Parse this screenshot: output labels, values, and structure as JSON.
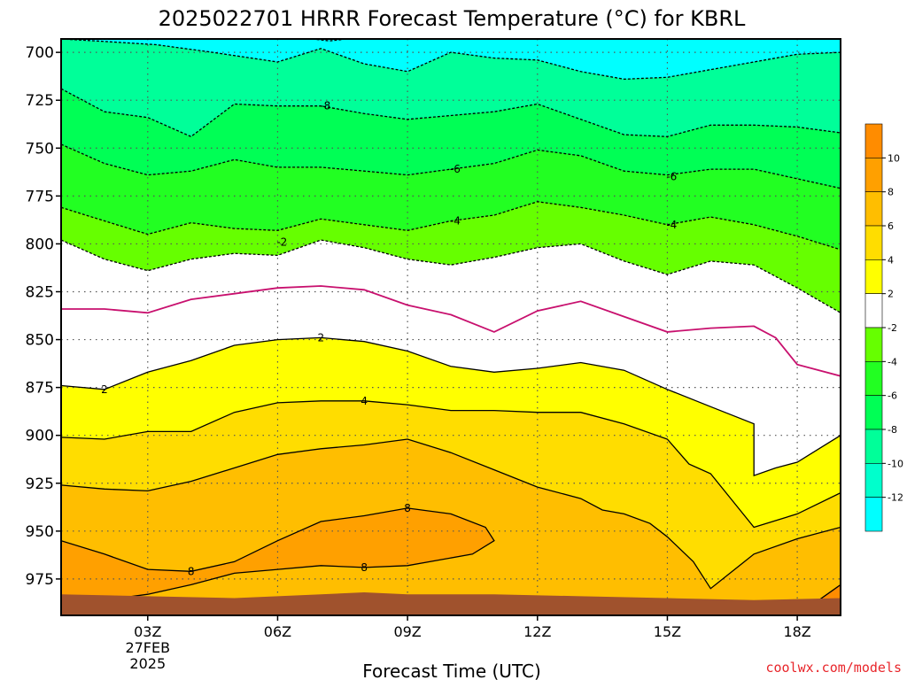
{
  "chart_data": {
    "type": "contour",
    "title": "2025022701 HRRR Forecast Temperature (°C) for KBRL",
    "xlabel": "Forecast Time (UTC)",
    "ylabel": "",
    "credit": "coolwx.com/models",
    "x_ticks": [
      {
        "hour": 3,
        "label": "03Z",
        "sub": [
          "27FEB",
          "2025"
        ]
      },
      {
        "hour": 6,
        "label": "06Z",
        "sub": []
      },
      {
        "hour": 9,
        "label": "09Z",
        "sub": []
      },
      {
        "hour": 12,
        "label": "12Z",
        "sub": []
      },
      {
        "hour": 15,
        "label": "15Z",
        "sub": []
      },
      {
        "hour": 18,
        "label": "18Z",
        "sub": []
      }
    ],
    "xlim": [
      1,
      19
    ],
    "y_axis": "pressure (hPa), decreasing upward",
    "ylim": [
      994,
      693
    ],
    "y_ticks": [
      700,
      725,
      750,
      775,
      800,
      825,
      850,
      875,
      900,
      925,
      950,
      975
    ],
    "grid": "dotted",
    "colorbar": {
      "levels": [
        12,
        10,
        8,
        6,
        4,
        2,
        -2,
        -4,
        -6,
        -8,
        -10,
        -12
      ],
      "labels": [
        "10",
        "8",
        "6",
        "4",
        "2",
        "-2",
        "-4",
        "-6",
        "-8",
        "-10",
        "-12"
      ],
      "bands": [
        {
          "range": "10 to 12",
          "color": "#ff8c00"
        },
        {
          "range": "8 to 10",
          "color": "#ffa000"
        },
        {
          "range": "6 to 8",
          "color": "#ffbe00"
        },
        {
          "range": "4 to 6",
          "color": "#ffdd00"
        },
        {
          "range": "2 to 4",
          "color": "#ffff00"
        },
        {
          "range": "-2 to 2",
          "color": "#ffffff"
        },
        {
          "range": "-4 to -2",
          "color": "#66ff00"
        },
        {
          "range": "-6 to -4",
          "color": "#22ff22"
        },
        {
          "range": "-8 to -6",
          "color": "#00ff55"
        },
        {
          "range": "-10 to -8",
          "color": "#00ff99"
        },
        {
          "range": "-12 to -10",
          "color": "#00ffcc"
        },
        {
          "range": "below -12",
          "color": "#00ffff"
        }
      ]
    },
    "contours": [
      {
        "level": -12,
        "style": "dashed",
        "points": [
          [
            6.8,
            693
          ],
          [
            7.2,
            694
          ],
          [
            7.6,
            693
          ]
        ]
      },
      {
        "level": -10,
        "style": "dashed",
        "points": [
          [
            1,
            693
          ],
          [
            1.8,
            694
          ],
          [
            3.2,
            696
          ],
          [
            4.5,
            700
          ],
          [
            6,
            705
          ],
          [
            7,
            698
          ],
          [
            8,
            706
          ],
          [
            9,
            710
          ],
          [
            10,
            700
          ],
          [
            11,
            703
          ],
          [
            12,
            704
          ],
          [
            13,
            710
          ],
          [
            14,
            714
          ],
          [
            15,
            713
          ],
          [
            16,
            709
          ],
          [
            17,
            705
          ],
          [
            18,
            701
          ],
          [
            19,
            700
          ]
        ]
      },
      {
        "level": -8,
        "style": "dashed",
        "points": [
          [
            1,
            719
          ],
          [
            2,
            731
          ],
          [
            3,
            734
          ],
          [
            4,
            744
          ],
          [
            5,
            727
          ],
          [
            6,
            728
          ],
          [
            7,
            728
          ],
          [
            8,
            732
          ],
          [
            9,
            735
          ],
          [
            10,
            733
          ],
          [
            11,
            731
          ],
          [
            12,
            727
          ],
          [
            13,
            735
          ],
          [
            14,
            743
          ],
          [
            15,
            744
          ],
          [
            16,
            738
          ],
          [
            17,
            738
          ],
          [
            18,
            739
          ],
          [
            19,
            742
          ]
        ]
      },
      {
        "level": -6,
        "style": "dashed",
        "points": [
          [
            1,
            748
          ],
          [
            2,
            758
          ],
          [
            3,
            764
          ],
          [
            4,
            762
          ],
          [
            5,
            756
          ],
          [
            6,
            760
          ],
          [
            7,
            760
          ],
          [
            8,
            762
          ],
          [
            9,
            764
          ],
          [
            10,
            761
          ],
          [
            11,
            758
          ],
          [
            12,
            751
          ],
          [
            13,
            754
          ],
          [
            14,
            762
          ],
          [
            15,
            764
          ],
          [
            16,
            761
          ],
          [
            17,
            761
          ],
          [
            18,
            766
          ],
          [
            19,
            771
          ]
        ]
      },
      {
        "level": -4,
        "style": "dashed",
        "points": [
          [
            1,
            781
          ],
          [
            2,
            788
          ],
          [
            3,
            795
          ],
          [
            4,
            789
          ],
          [
            5,
            792
          ],
          [
            6,
            793
          ],
          [
            7,
            787
          ],
          [
            8,
            790
          ],
          [
            9,
            793
          ],
          [
            10,
            788
          ],
          [
            11,
            785
          ],
          [
            12,
            778
          ],
          [
            13,
            781
          ],
          [
            14,
            785
          ],
          [
            15,
            790
          ],
          [
            16,
            786
          ],
          [
            17,
            790
          ],
          [
            18,
            796
          ],
          [
            19,
            803
          ]
        ]
      },
      {
        "level": -2,
        "style": "dashed",
        "points": [
          [
            1,
            798
          ],
          [
            2,
            808
          ],
          [
            3,
            814
          ],
          [
            4,
            808
          ],
          [
            5,
            805
          ],
          [
            6,
            806
          ],
          [
            7,
            798
          ],
          [
            8,
            802
          ],
          [
            9,
            808
          ],
          [
            10,
            811
          ],
          [
            11,
            807
          ],
          [
            12,
            802
          ],
          [
            13,
            800
          ],
          [
            14,
            809
          ],
          [
            15,
            816
          ],
          [
            16,
            809
          ],
          [
            17,
            811
          ],
          [
            18,
            823
          ],
          [
            19,
            836
          ]
        ]
      },
      {
        "level": 0,
        "style": "solid-magenta",
        "points": [
          [
            1,
            834
          ],
          [
            2,
            834
          ],
          [
            3,
            836
          ],
          [
            4,
            829
          ],
          [
            5,
            826
          ],
          [
            6,
            823
          ],
          [
            7,
            822
          ],
          [
            8,
            824
          ],
          [
            9,
            832
          ],
          [
            10,
            837
          ],
          [
            11,
            846
          ],
          [
            12,
            835
          ],
          [
            13,
            830
          ],
          [
            14,
            838
          ],
          [
            15,
            846
          ],
          [
            16,
            844
          ],
          [
            17,
            843
          ],
          [
            17.5,
            849
          ],
          [
            18,
            863
          ],
          [
            19,
            869
          ]
        ]
      },
      {
        "level": 2,
        "style": "solid",
        "points": [
          [
            1,
            874
          ],
          [
            2,
            876
          ],
          [
            3,
            867
          ],
          [
            4,
            861
          ],
          [
            5,
            853
          ],
          [
            6,
            850
          ],
          [
            7,
            849
          ],
          [
            8,
            851
          ],
          [
            9,
            856
          ],
          [
            10,
            864
          ],
          [
            11,
            867
          ],
          [
            12,
            865
          ],
          [
            13,
            862
          ],
          [
            14,
            866
          ],
          [
            15,
            876
          ],
          [
            16,
            885
          ],
          [
            17,
            894
          ],
          [
            17,
            921
          ],
          [
            17.5,
            917
          ],
          [
            18,
            914
          ],
          [
            19,
            900
          ]
        ]
      },
      {
        "level": 4,
        "style": "solid",
        "points": [
          [
            1,
            901
          ],
          [
            2,
            902
          ],
          [
            3,
            898
          ],
          [
            4,
            898
          ],
          [
            5,
            888
          ],
          [
            6,
            883
          ],
          [
            7,
            882
          ],
          [
            8,
            882
          ],
          [
            9,
            884
          ],
          [
            10,
            887
          ],
          [
            11,
            887
          ],
          [
            12,
            888
          ],
          [
            13,
            888
          ],
          [
            14,
            894
          ],
          [
            15,
            902
          ],
          [
            15.5,
            915
          ],
          [
            16,
            920
          ],
          [
            17,
            948
          ],
          [
            18,
            941
          ],
          [
            19,
            930
          ]
        ]
      },
      {
        "level": 6,
        "style": "solid",
        "points": [
          [
            1,
            926
          ],
          [
            2,
            928
          ],
          [
            3,
            929
          ],
          [
            4,
            924
          ],
          [
            5,
            917
          ],
          [
            6,
            910
          ],
          [
            7,
            907
          ],
          [
            8,
            905
          ],
          [
            9,
            902
          ],
          [
            10,
            909
          ],
          [
            11,
            918
          ],
          [
            12,
            927
          ],
          [
            13,
            933
          ],
          [
            13.5,
            939
          ],
          [
            14,
            941
          ],
          [
            14.6,
            946
          ],
          [
            15,
            953
          ],
          [
            15.6,
            966
          ],
          [
            16,
            980
          ],
          [
            17,
            962
          ],
          [
            18,
            954
          ],
          [
            19,
            948
          ]
        ]
      },
      {
        "level": 8,
        "style": "solid",
        "points": [
          [
            1,
            955
          ],
          [
            2,
            962
          ],
          [
            3,
            970
          ],
          [
            4,
            971
          ],
          [
            5,
            966
          ],
          [
            6,
            955
          ],
          [
            7,
            945
          ],
          [
            8,
            942
          ],
          [
            9,
            938
          ],
          [
            10,
            941
          ],
          [
            10.8,
            948
          ],
          [
            11,
            955
          ],
          [
            10.5,
            962
          ],
          [
            9,
            968
          ],
          [
            8,
            969
          ],
          [
            7,
            968
          ],
          [
            6,
            970
          ],
          [
            5,
            972
          ],
          [
            4,
            978
          ],
          [
            3,
            983
          ],
          [
            2,
            986
          ],
          [
            1,
            986
          ]
        ]
      },
      {
        "level": 10,
        "style": "solid",
        "points": [
          [
            18.5,
            986
          ],
          [
            19,
            978
          ]
        ]
      }
    ],
    "contour_labels": [
      {
        "text": "-8",
        "x": 7.1,
        "y": 728
      },
      {
        "text": "-6",
        "x": 10.1,
        "y": 761
      },
      {
        "text": "-6",
        "x": 15.1,
        "y": 765
      },
      {
        "text": "-4",
        "x": 10.1,
        "y": 788
      },
      {
        "text": "-4",
        "x": 15.1,
        "y": 790
      },
      {
        "text": "-2",
        "x": 6.1,
        "y": 799
      },
      {
        "text": "2",
        "x": 7.0,
        "y": 849
      },
      {
        "text": "2",
        "x": 2.0,
        "y": 876
      },
      {
        "text": "4",
        "x": 8.0,
        "y": 882
      },
      {
        "text": "8",
        "x": 9.0,
        "y": 938
      },
      {
        "text": "8",
        "x": 4.0,
        "y": 971
      },
      {
        "text": "8",
        "x": 8.0,
        "y": 969
      }
    ],
    "ground": {
      "color": "#a0522d",
      "top": [
        [
          1,
          983
        ],
        [
          3,
          984
        ],
        [
          5,
          985
        ],
        [
          7,
          983
        ],
        [
          8,
          982
        ],
        [
          9,
          983
        ],
        [
          11,
          983
        ],
        [
          13,
          984
        ],
        [
          15,
          985
        ],
        [
          17,
          986
        ],
        [
          19,
          985
        ]
      ]
    }
  }
}
